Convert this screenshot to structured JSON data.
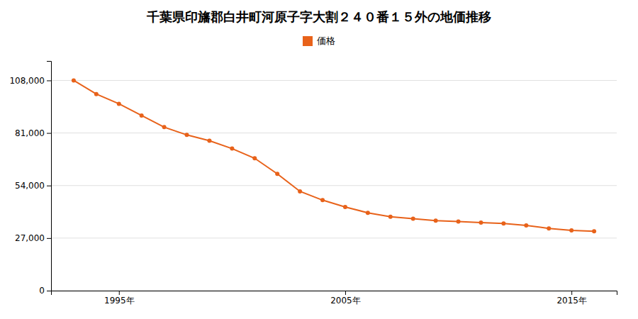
{
  "chart_data": {
    "type": "line",
    "title": "千葉県印旛郡白井町河原子字大割２４０番１５外の地価推移",
    "x": [
      1993,
      1994,
      1995,
      1996,
      1997,
      1998,
      1999,
      2000,
      2001,
      2002,
      2003,
      2004,
      2005,
      2006,
      2007,
      2008,
      2009,
      2010,
      2011,
      2012,
      2013,
      2014,
      2015,
      2016
    ],
    "series": [
      {
        "name": "価格",
        "color": "#E8621A",
        "values": [
          108000,
          101000,
          96000,
          90000,
          84000,
          80000,
          77000,
          73000,
          68000,
          60000,
          51000,
          46500,
          43000,
          40000,
          38000,
          37000,
          36000,
          35500,
          35000,
          34500,
          33500,
          32000,
          31000,
          30500
        ]
      }
    ],
    "xlim": [
      1992,
      2017
    ],
    "xticks": [
      {
        "value": 1995,
        "label": "1995年"
      },
      {
        "value": 2005,
        "label": "2005年"
      },
      {
        "value": 2015,
        "label": "2015年"
      }
    ],
    "ylim": [
      0,
      118000
    ],
    "yticks": [
      0,
      {
        "value": 27000,
        "label": "27,000"
      },
      {
        "value": 54000,
        "label": "54,000"
      },
      {
        "value": 81000,
        "label": "81,000"
      },
      {
        "value": 108000,
        "label": "108,000"
      }
    ],
    "grid": true,
    "legend": "top",
    "marker": "circle"
  }
}
